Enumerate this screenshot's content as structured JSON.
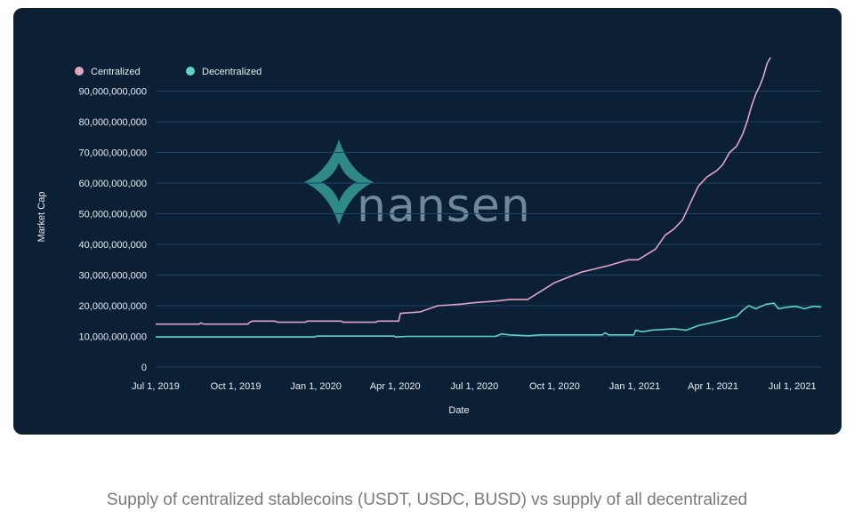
{
  "caption": "Supply of centralized stablecoins (USDT, USDC, BUSD) vs supply of all decentralized",
  "watermark": {
    "text": "nansen",
    "color": "#2f8a86"
  },
  "colors": {
    "card": "#0b2035",
    "grid": "#1e4468",
    "text": "#e6ecf2",
    "centralized": "#e3a3c6",
    "decentralized": "#5fd3c8"
  },
  "chart_data": {
    "type": "line",
    "title": "",
    "xlabel": "Date",
    "ylabel": "Market Cap",
    "x_domain": [
      "2019-07-01",
      "2021-08-03"
    ],
    "ylim": [
      0,
      100000000000
    ],
    "x_ticks": [
      {
        "label": "Jul 1, 2019",
        "date": "2019-07-01"
      },
      {
        "label": "Oct 1, 2019",
        "date": "2019-10-01"
      },
      {
        "label": "Jan 1, 2020",
        "date": "2020-01-01"
      },
      {
        "label": "Apr 1, 2020",
        "date": "2020-04-01"
      },
      {
        "label": "Jul 1, 2020",
        "date": "2020-07-01"
      },
      {
        "label": "Oct 1, 2020",
        "date": "2020-10-01"
      },
      {
        "label": "Jan 1, 2021",
        "date": "2021-01-01"
      },
      {
        "label": "Apr 1, 2021",
        "date": "2021-04-01"
      },
      {
        "label": "Jul 1, 2021",
        "date": "2021-07-01"
      }
    ],
    "y_ticks": [
      {
        "label": "0",
        "value": 0
      },
      {
        "label": "10,000,000,000",
        "value": 10000000000
      },
      {
        "label": "20,000,000,000",
        "value": 20000000000
      },
      {
        "label": "30,000,000,000",
        "value": 30000000000
      },
      {
        "label": "40,000,000,000",
        "value": 40000000000
      },
      {
        "label": "50,000,000,000",
        "value": 50000000000
      },
      {
        "label": "60,000,000,000",
        "value": 60000000000
      },
      {
        "label": "70,000,000,000",
        "value": 70000000000
      },
      {
        "label": "80,000,000,000",
        "value": 80000000000
      },
      {
        "label": "90,000,000,000",
        "value": 90000000000
      }
    ],
    "legend_position": "top-left",
    "grid": true,
    "series": [
      {
        "name": "Centralized",
        "color": "#e3a3c6",
        "step": true,
        "points": [
          [
            "2019-07-01",
            14000000000
          ],
          [
            "2019-08-20",
            14000000000
          ],
          [
            "2019-08-22",
            14400000000
          ],
          [
            "2019-08-25",
            14000000000
          ],
          [
            "2019-10-15",
            14000000000
          ],
          [
            "2019-10-17",
            14600000000
          ],
          [
            "2019-10-20",
            15000000000
          ],
          [
            "2019-11-15",
            15000000000
          ],
          [
            "2019-11-18",
            14600000000
          ],
          [
            "2019-12-20",
            14600000000
          ],
          [
            "2019-12-22",
            15000000000
          ],
          [
            "2020-01-30",
            15000000000
          ],
          [
            "2020-02-01",
            14600000000
          ],
          [
            "2020-03-10",
            14600000000
          ],
          [
            "2020-03-12",
            15000000000
          ],
          [
            "2020-04-05",
            15000000000
          ],
          [
            "2020-04-07",
            17500000000
          ],
          [
            "2020-04-30",
            18000000000
          ],
          [
            "2020-05-20",
            20000000000
          ],
          [
            "2020-06-15",
            20500000000
          ],
          [
            "2020-07-01",
            21000000000
          ],
          [
            "2020-07-25",
            21500000000
          ],
          [
            "2020-08-10",
            22000000000
          ],
          [
            "2020-08-31",
            22000000000
          ],
          [
            "2020-10-01",
            27500000000
          ],
          [
            "2020-11-01",
            31000000000
          ],
          [
            "2020-12-01",
            33000000000
          ],
          [
            "2020-12-25",
            35000000000
          ],
          [
            "2021-01-05",
            35000000000
          ],
          [
            "2021-01-25",
            38500000000
          ],
          [
            "2021-02-05",
            43000000000
          ],
          [
            "2021-02-15",
            45000000000
          ],
          [
            "2021-02-25",
            48000000000
          ],
          [
            "2021-03-10",
            56000000000
          ],
          [
            "2021-03-15",
            59000000000
          ],
          [
            "2021-03-25",
            62000000000
          ],
          [
            "2021-04-05",
            64000000000
          ],
          [
            "2021-04-12",
            66000000000
          ],
          [
            "2021-04-20",
            70000000000
          ],
          [
            "2021-04-28",
            72000000000
          ],
          [
            "2021-05-05",
            76000000000
          ],
          [
            "2021-05-10",
            80000000000
          ],
          [
            "2021-05-15",
            85000000000
          ],
          [
            "2021-05-20",
            89000000000
          ],
          [
            "2021-05-25",
            92000000000
          ],
          [
            "2021-05-29",
            95000000000
          ],
          [
            "2021-06-02",
            99000000000
          ],
          [
            "2021-06-06",
            101000000000
          ]
        ]
      },
      {
        "name": "Decentralized",
        "color": "#5fd3c8",
        "step": true,
        "points": [
          [
            "2019-07-01",
            9800000000
          ],
          [
            "2019-12-31",
            9800000000
          ],
          [
            "2020-01-02",
            10100000000
          ],
          [
            "2020-03-31",
            10100000000
          ],
          [
            "2020-04-01",
            9800000000
          ],
          [
            "2020-04-15",
            10000000000
          ],
          [
            "2020-07-25",
            10000000000
          ],
          [
            "2020-08-01",
            10800000000
          ],
          [
            "2020-08-10",
            10500000000
          ],
          [
            "2020-09-01",
            10200000000
          ],
          [
            "2020-09-15",
            10500000000
          ],
          [
            "2020-11-25",
            10500000000
          ],
          [
            "2020-11-28",
            11200000000
          ],
          [
            "2020-12-02",
            10500000000
          ],
          [
            "2020-12-31",
            10500000000
          ],
          [
            "2021-01-02",
            12000000000
          ],
          [
            "2021-01-10",
            11500000000
          ],
          [
            "2021-01-20",
            12000000000
          ],
          [
            "2021-02-15",
            12500000000
          ],
          [
            "2021-03-01",
            12000000000
          ],
          [
            "2021-03-15",
            13500000000
          ],
          [
            "2021-03-31",
            14500000000
          ],
          [
            "2021-04-15",
            15500000000
          ],
          [
            "2021-04-28",
            16500000000
          ],
          [
            "2021-05-05",
            18500000000
          ],
          [
            "2021-05-12",
            20000000000
          ],
          [
            "2021-05-20",
            19000000000
          ],
          [
            "2021-06-01",
            20500000000
          ],
          [
            "2021-06-10",
            20800000000
          ],
          [
            "2021-06-15",
            19000000000
          ],
          [
            "2021-06-25",
            19500000000
          ],
          [
            "2021-07-05",
            19800000000
          ],
          [
            "2021-07-15",
            19000000000
          ],
          [
            "2021-07-25",
            19800000000
          ],
          [
            "2021-08-03",
            19600000000
          ]
        ]
      }
    ]
  }
}
